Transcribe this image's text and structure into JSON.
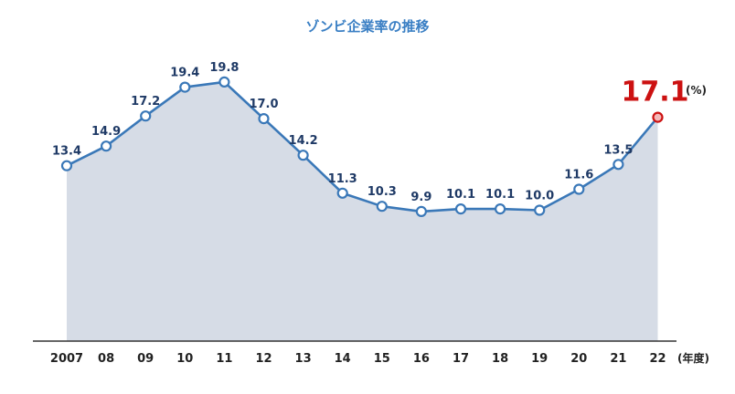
{
  "chart_data": {
    "type": "area",
    "title": "ゾンビ企業率の推移",
    "y_unit": "(%)",
    "x_unit": "(年度)",
    "categories": [
      "2007",
      "08",
      "09",
      "10",
      "11",
      "12",
      "13",
      "14",
      "15",
      "16",
      "17",
      "18",
      "19",
      "20",
      "21",
      "22"
    ],
    "values": [
      13.4,
      14.9,
      17.2,
      19.4,
      19.8,
      17.0,
      14.2,
      11.3,
      10.3,
      9.9,
      10.1,
      10.1,
      10.0,
      11.6,
      13.5,
      17.1
    ],
    "ylim": [
      0,
      22
    ],
    "grid": false,
    "highlight_index": 15,
    "colors": {
      "line": "#3a78b8",
      "fill": "#d6dce6",
      "marker_fill": "#ffffff",
      "highlight": "#cc1111",
      "highlight_marker_fill": "#f4b8b8",
      "label": "#1f3a66",
      "axis": "#333333"
    }
  }
}
